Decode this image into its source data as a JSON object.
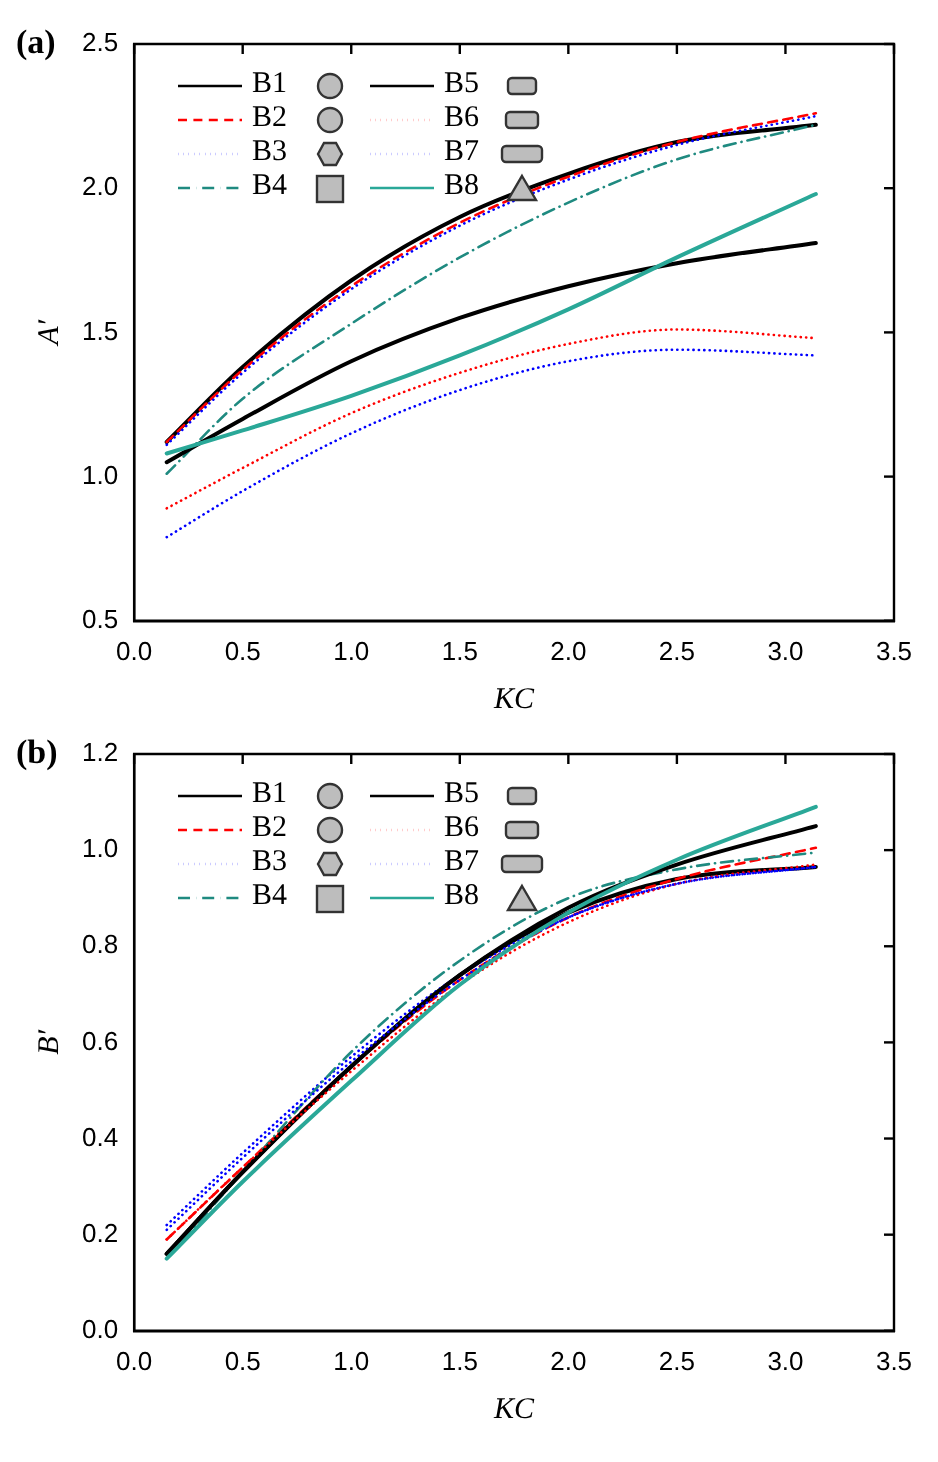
{
  "chart_data": [
    {
      "type": "line",
      "title": "(a)",
      "xlabel": "KC",
      "ylabel": "A′",
      "x": [
        0.15,
        0.5,
        1.0,
        1.5,
        2.0,
        2.5,
        3.14
      ],
      "xlim": [
        0,
        3.5
      ],
      "xticks": [
        {
          "value": 0,
          "label": "0.0"
        },
        0.5,
        {
          "value": 1,
          "label": "1.0"
        },
        1.5,
        {
          "value": 2,
          "label": "2.0"
        },
        2.5,
        {
          "value": 3,
          "label": "3.0"
        },
        3.5
      ],
      "ylim": [
        0.5,
        2.5
      ],
      "yticks": [
        0.5,
        {
          "value": 1,
          "label": "1.0"
        },
        1.5,
        {
          "value": 2,
          "label": "2.0"
        },
        2.5
      ],
      "legend": "top left",
      "grid": false,
      "marker": "none",
      "series": [
        {
          "name": "B1",
          "color": "#000000",
          "line_style": "solid",
          "values": [
            1.12,
            1.38,
            1.68,
            1.9,
            2.05,
            2.16,
            2.22
          ]
        },
        {
          "name": "B2",
          "color": "#ff0000",
          "line_style": "dashed",
          "values": [
            1.12,
            1.37,
            1.66,
            1.88,
            2.04,
            2.16,
            2.26
          ]
        },
        {
          "name": "B3",
          "color": "#0000ff",
          "line_style": "dotted",
          "values": [
            1.11,
            1.36,
            1.65,
            1.87,
            2.03,
            2.15,
            2.25
          ]
        },
        {
          "name": "B4",
          "color": "#1f8a80",
          "line_style": "dashdot",
          "values": [
            1.01,
            1.27,
            1.53,
            1.76,
            1.95,
            2.1,
            2.22
          ]
        },
        {
          "name": "B5",
          "color": "#000000",
          "line_style": "solid",
          "values": [
            1.05,
            1.2,
            1.4,
            1.55,
            1.66,
            1.74,
            1.81
          ]
        },
        {
          "name": "B6",
          "color": "#ff0000",
          "line_style": "dotted",
          "values": [
            0.89,
            1.03,
            1.22,
            1.36,
            1.46,
            1.51,
            1.48
          ]
        },
        {
          "name": "B7",
          "color": "#0000ff",
          "line_style": "dotted",
          "values": [
            0.79,
            0.95,
            1.15,
            1.3,
            1.4,
            1.44,
            1.42
          ]
        },
        {
          "name": "B8",
          "color": "#2aa898",
          "line_style": "solid",
          "values": [
            1.08,
            1.16,
            1.28,
            1.42,
            1.58,
            1.76,
            1.98
          ]
        }
      ]
    },
    {
      "type": "line",
      "title": "(b)",
      "xlabel": "KC",
      "ylabel": "B′",
      "x": [
        0.15,
        0.5,
        1.0,
        1.5,
        2.0,
        2.5,
        3.14
      ],
      "xlim": [
        0,
        3.5
      ],
      "xticks": [
        {
          "value": 0,
          "label": "0.0"
        },
        0.5,
        {
          "value": 1,
          "label": "1.0"
        },
        1.5,
        {
          "value": 2,
          "label": "2.0"
        },
        2.5,
        {
          "value": 3,
          "label": "3.0"
        },
        3.5
      ],
      "ylim": [
        0,
        1.2
      ],
      "yticks": [
        {
          "value": 0,
          "label": "0.0"
        },
        0.2,
        0.4,
        0.6,
        0.8,
        {
          "value": 1,
          "label": "1.0"
        },
        1.2
      ],
      "legend": "top left",
      "grid": false,
      "marker": "none",
      "series": [
        {
          "name": "B1",
          "color": "#000000",
          "line_style": "solid",
          "values": [
            0.16,
            0.33,
            0.55,
            0.74,
            0.87,
            0.94,
            0.965
          ]
        },
        {
          "name": "B2",
          "color": "#ff0000",
          "line_style": "dashed",
          "values": [
            0.19,
            0.34,
            0.55,
            0.73,
            0.86,
            0.94,
            1.005
          ]
        },
        {
          "name": "B3",
          "color": "#0000ff",
          "line_style": "dotted",
          "values": [
            0.22,
            0.37,
            0.57,
            0.74,
            0.86,
            0.93,
            0.965
          ]
        },
        {
          "name": "B4",
          "color": "#1f8a80",
          "line_style": "dashdot",
          "values": [
            0.15,
            0.33,
            0.58,
            0.77,
            0.9,
            0.96,
            0.995
          ]
        },
        {
          "name": "B5",
          "color": "#000000",
          "line_style": "solid",
          "values": [
            0.16,
            0.33,
            0.55,
            0.74,
            0.88,
            0.97,
            1.05
          ]
        },
        {
          "name": "B6",
          "color": "#ff0000",
          "line_style": "dotted",
          "values": [
            0.19,
            0.34,
            0.54,
            0.72,
            0.85,
            0.93,
            0.97
          ]
        },
        {
          "name": "B7",
          "color": "#0000ff",
          "line_style": "dotted",
          "values": [
            0.21,
            0.36,
            0.56,
            0.73,
            0.86,
            0.93,
            0.965
          ]
        },
        {
          "name": "B8",
          "color": "#2aa898",
          "line_style": "solid",
          "values": [
            0.15,
            0.31,
            0.52,
            0.72,
            0.87,
            0.98,
            1.09
          ]
        }
      ]
    }
  ]
}
